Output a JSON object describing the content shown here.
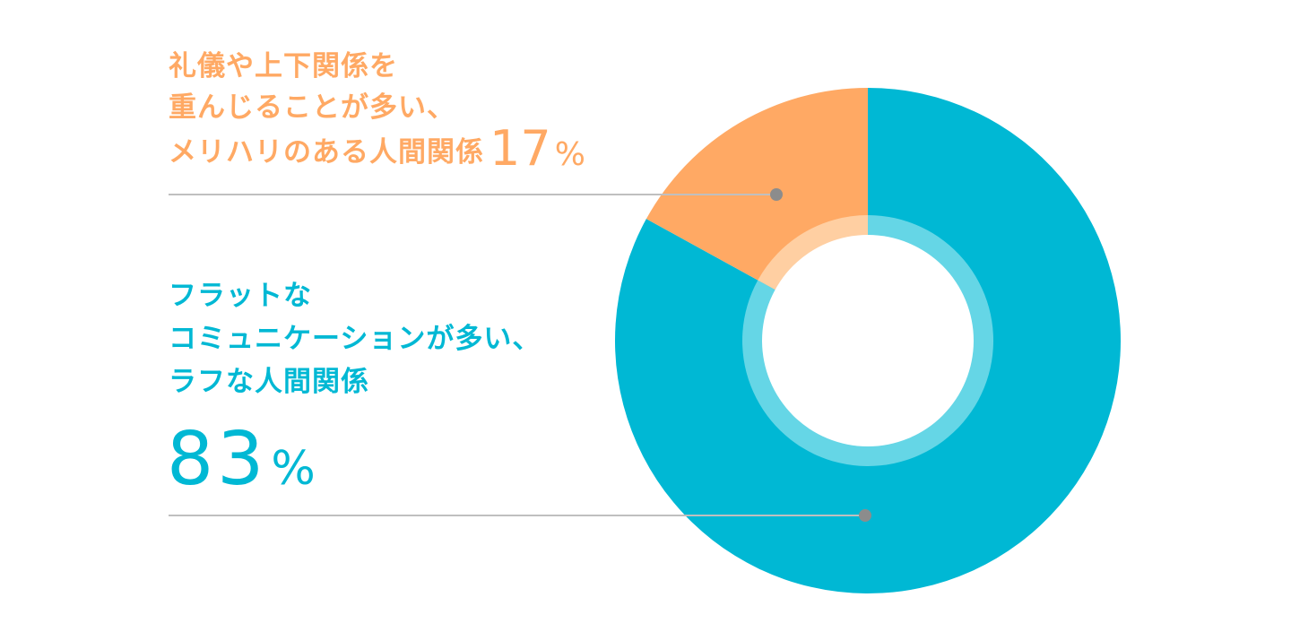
{
  "chart_data": {
    "type": "pie",
    "style": "donut",
    "slices": [
      {
        "name": "礼儀や上下関係を重んじることが多い、メリハリのある人間関係",
        "label_lines": [
          "礼儀や上下関係を",
          "重んじることが多い、",
          "メリハリのある人間関係"
        ],
        "value": 17,
        "unit": "%",
        "color": "#FFA964",
        "inner_color": "#FFCFA2"
      },
      {
        "name": "フラットなコミュニケーションが多い、ラフな人間関係",
        "label_lines": [
          "フラットな",
          "コミュニケーションが多い、",
          "ラフな人間関係"
        ],
        "value": 83,
        "unit": "%",
        "color": "#00B8D4",
        "inner_color": "#65D6E6"
      }
    ],
    "leader_line_color": "#BFBFBF",
    "leader_dot_color": "#8C8C8C"
  }
}
